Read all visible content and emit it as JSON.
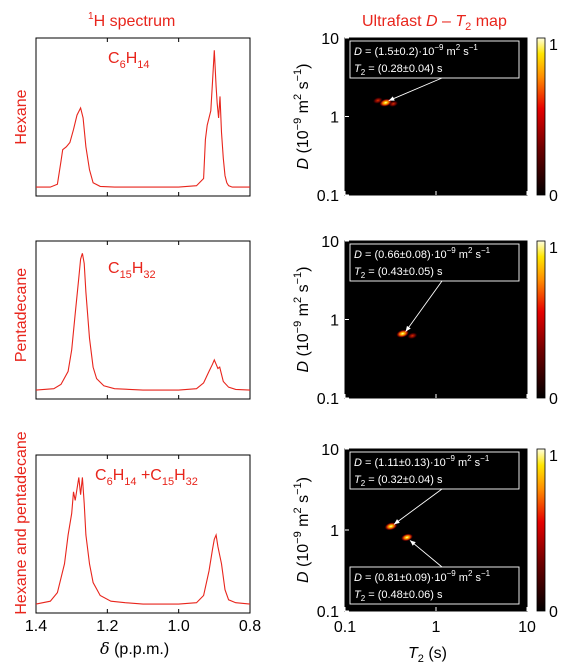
{
  "colors": {
    "accent": "#e8251c",
    "spectrum_line": "#e8251c",
    "map_background": "#000000",
    "annotation_text": "#ffffff"
  },
  "headers": {
    "left_sup": "1",
    "left": "H spectrum",
    "right_pre": "Ultrafast ",
    "right_D": "D",
    "right_mid": " – ",
    "right_T": "T",
    "right_sub": "2",
    "right_post": " map"
  },
  "axes": {
    "left_xlabel_sym": "δ",
    "left_xlabel_unit": " (p.p.m.)",
    "left_xticks": [
      "1.4",
      "1.2",
      "1.0",
      "0.8"
    ],
    "right_ylabel_pre": "D",
    "right_ylabel_unit_a": " (10",
    "right_ylabel_exp1": "−9",
    "right_ylabel_unit_b": " m",
    "right_ylabel_exp2": "2",
    "right_ylabel_unit_c": " s",
    "right_ylabel_exp3": "−1",
    "right_ylabel_close": ")",
    "right_yticks": [
      "10",
      "1",
      "0.1"
    ],
    "right_xlabel_T": "T",
    "right_xlabel_sub": "2",
    "right_xlabel_unit": " (s)",
    "right_xticks": [
      "0.1",
      "1",
      "10"
    ],
    "colorbar_ticks": [
      "1",
      "0"
    ]
  },
  "rows": [
    {
      "name": "Hexane",
      "formula_parts": [
        {
          "t": "C",
          "sub": false
        },
        {
          "t": "6",
          "sub": true
        },
        {
          "t": "H",
          "sub": false
        },
        {
          "t": "14",
          "sub": true
        }
      ],
      "annotations": [
        {
          "D_line": "D = (1.5±0.2)·10",
          "D_exp": "−9",
          "D_unit": " m",
          "D_exp2": "2",
          "D_s": " s",
          "D_exp3": "−1",
          "T_line_pre": "T",
          "T_sub": "2",
          "T_line": " = (0.28±0.04) s"
        }
      ]
    },
    {
      "name": "Pentadecane",
      "formula_parts": [
        {
          "t": "C",
          "sub": false
        },
        {
          "t": "15",
          "sub": true
        },
        {
          "t": "H",
          "sub": false
        },
        {
          "t": "32",
          "sub": true
        }
      ],
      "annotations": [
        {
          "D_line": "D = (0.66±0.08)·10",
          "D_exp": "−9",
          "D_unit": " m",
          "D_exp2": "2",
          "D_s": " s",
          "D_exp3": "−1",
          "T_line_pre": "T",
          "T_sub": "2",
          "T_line": " = (0.43±0.05) s"
        }
      ]
    },
    {
      "name": "Hexane and pentadecane",
      "formula_parts": [
        {
          "t": "C",
          "sub": false
        },
        {
          "t": "6",
          "sub": true
        },
        {
          "t": "H",
          "sub": false
        },
        {
          "t": "14",
          "sub": true
        },
        {
          "t": " +C",
          "sub": false
        },
        {
          "t": "15",
          "sub": true
        },
        {
          "t": "H",
          "sub": false
        },
        {
          "t": "32",
          "sub": true
        }
      ],
      "annotations": [
        {
          "D_line": "D = (1.11±0.13)·10",
          "D_exp": "−9",
          "D_unit": " m",
          "D_exp2": "2",
          "D_s": " s",
          "D_exp3": "−1",
          "T_line_pre": "T",
          "T_sub": "2",
          "T_line": " = (0.32±0.04) s"
        },
        {
          "D_line": "D = (0.81±0.09)·10",
          "D_exp": "−9",
          "D_unit": " m",
          "D_exp2": "2",
          "D_s": " s",
          "D_exp3": "−1",
          "T_line_pre": "T",
          "T_sub": "2",
          "T_line": " = (0.48±0.06) s"
        }
      ]
    }
  ],
  "chart_data": [
    {
      "type": "line",
      "panel": "hexane-spectrum",
      "title": "1H spectrum",
      "xlabel": "δ (p.p.m.)",
      "xlim": [
        1.4,
        0.8
      ],
      "x_reversed": true,
      "series": [
        {
          "x": [
            1.4,
            1.36,
            1.34,
            1.33,
            1.325,
            1.315,
            1.305,
            1.295,
            1.285,
            1.275,
            1.268,
            1.26,
            1.25,
            1.24,
            1.22,
            1.18,
            1.1,
            1.0,
            0.95,
            0.93,
            0.925,
            0.92,
            0.915,
            0.91,
            0.905,
            0.9,
            0.895,
            0.892,
            0.888,
            0.884,
            0.88,
            0.875,
            0.87,
            0.865,
            0.86,
            0.85,
            0.83,
            0.8
          ],
          "y": [
            0.02,
            0.02,
            0.04,
            0.2,
            0.28,
            0.3,
            0.33,
            0.42,
            0.52,
            0.57,
            0.5,
            0.3,
            0.14,
            0.05,
            0.025,
            0.02,
            0.02,
            0.02,
            0.03,
            0.08,
            0.35,
            0.45,
            0.5,
            0.55,
            0.75,
            0.97,
            0.72,
            0.6,
            0.5,
            0.65,
            0.4,
            0.22,
            0.1,
            0.05,
            0.03,
            0.02,
            0.02,
            0.02
          ]
        }
      ]
    },
    {
      "type": "line",
      "panel": "pentadecane-spectrum",
      "xlim": [
        1.4,
        0.8
      ],
      "x_reversed": true,
      "series": [
        {
          "x": [
            1.4,
            1.35,
            1.33,
            1.31,
            1.3,
            1.29,
            1.28,
            1.275,
            1.27,
            1.265,
            1.26,
            1.25,
            1.24,
            1.23,
            1.21,
            1.18,
            1.1,
            1.0,
            0.95,
            0.93,
            0.915,
            0.905,
            0.9,
            0.895,
            0.89,
            0.885,
            0.875,
            0.86,
            0.84,
            0.8
          ],
          "y": [
            0.02,
            0.03,
            0.06,
            0.15,
            0.3,
            0.55,
            0.8,
            0.93,
            0.97,
            0.9,
            0.7,
            0.38,
            0.18,
            0.1,
            0.05,
            0.03,
            0.02,
            0.02,
            0.03,
            0.07,
            0.15,
            0.2,
            0.23,
            0.2,
            0.17,
            0.18,
            0.08,
            0.04,
            0.025,
            0.02
          ]
        }
      ]
    },
    {
      "type": "line",
      "panel": "mixture-spectrum",
      "xlim": [
        1.4,
        0.8
      ],
      "x_reversed": true,
      "series": [
        {
          "x": [
            1.4,
            1.36,
            1.34,
            1.32,
            1.31,
            1.3,
            1.295,
            1.29,
            1.285,
            1.28,
            1.275,
            1.27,
            1.265,
            1.26,
            1.25,
            1.24,
            1.22,
            1.19,
            1.15,
            1.1,
            1.0,
            0.95,
            0.93,
            0.915,
            0.905,
            0.9,
            0.895,
            0.89,
            0.885,
            0.88,
            0.87,
            0.86,
            0.84,
            0.8
          ],
          "y": [
            0.02,
            0.04,
            0.1,
            0.3,
            0.5,
            0.65,
            0.8,
            0.74,
            0.82,
            0.9,
            0.78,
            0.9,
            0.72,
            0.5,
            0.3,
            0.17,
            0.08,
            0.04,
            0.03,
            0.02,
            0.02,
            0.03,
            0.08,
            0.25,
            0.4,
            0.47,
            0.5,
            0.42,
            0.36,
            0.3,
            0.12,
            0.05,
            0.03,
            0.02
          ]
        }
      ]
    },
    {
      "type": "heatmap",
      "panel": "hexane-map",
      "title": "Ultrafast D – T2 map",
      "xlabel": "T2 (s)",
      "ylabel": "D (10^-9 m^2 s^-1)",
      "xscale": "log",
      "yscale": "log",
      "xlim": [
        0.1,
        10
      ],
      "ylim": [
        0.1,
        10
      ],
      "colorbar": [
        0,
        1
      ],
      "peaks": [
        {
          "T2": 0.28,
          "D": 1.5,
          "intensity": 1.0
        },
        {
          "T2": 0.23,
          "D": 1.6,
          "intensity": 0.45
        },
        {
          "T2": 0.34,
          "D": 1.45,
          "intensity": 0.35
        }
      ]
    },
    {
      "type": "heatmap",
      "panel": "pentadecane-map",
      "xscale": "log",
      "yscale": "log",
      "xlim": [
        0.1,
        10
      ],
      "ylim": [
        0.1,
        10
      ],
      "colorbar": [
        0,
        1
      ],
      "peaks": [
        {
          "T2": 0.43,
          "D": 0.66,
          "intensity": 1.0
        },
        {
          "T2": 0.55,
          "D": 0.62,
          "intensity": 0.45
        }
      ]
    },
    {
      "type": "heatmap",
      "panel": "mixture-map",
      "xscale": "log",
      "yscale": "log",
      "xlim": [
        0.1,
        10
      ],
      "ylim": [
        0.1,
        10
      ],
      "colorbar": [
        0,
        1
      ],
      "peaks": [
        {
          "T2": 0.32,
          "D": 1.11,
          "intensity": 1.0
        },
        {
          "T2": 0.48,
          "D": 0.81,
          "intensity": 0.85
        }
      ]
    }
  ]
}
